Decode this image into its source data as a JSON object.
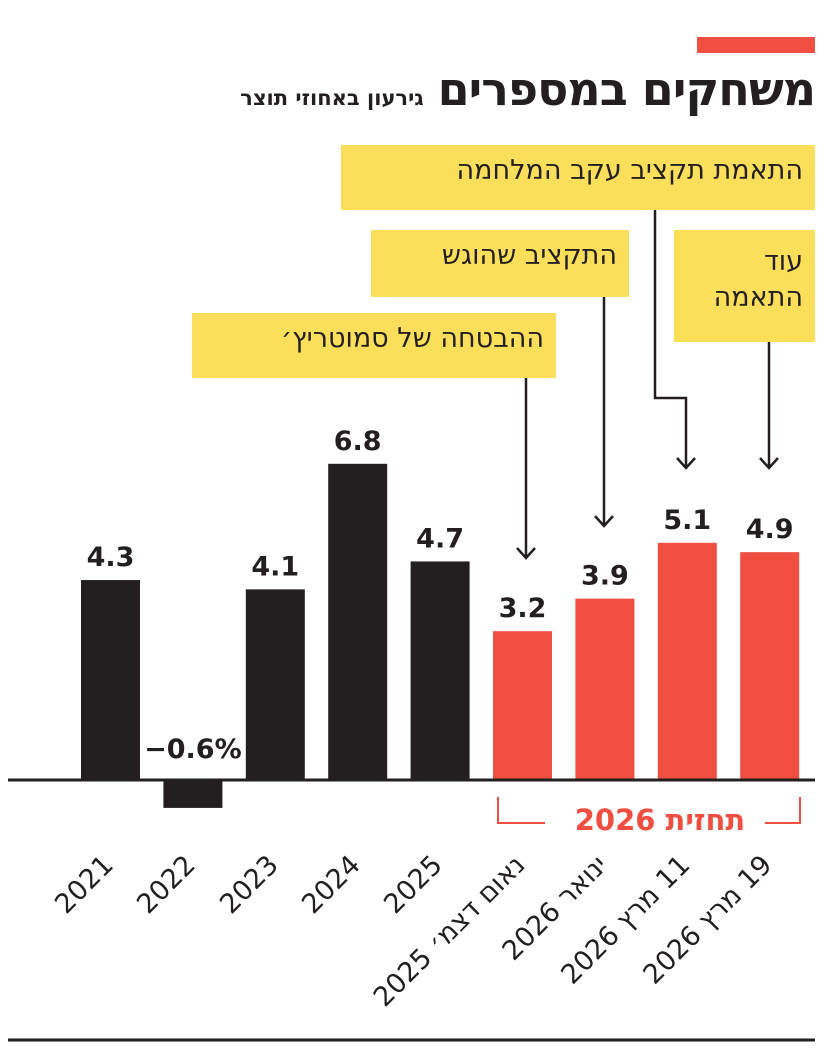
{
  "header": {
    "title": "משחקים במספרים",
    "subtitle": "גירעון באחוזי תוצר"
  },
  "annotations": [
    "התאמת תקציב עקב המלחמה",
    "התקציב שהוגש",
    "עוד התאמה",
    "ההבטחה של סמוטריץ׳"
  ],
  "forecast_label": "תחזית 2026",
  "colors": {
    "actual": "#231f20",
    "forecast": "#f04e40",
    "annotation_bg": "#fbdf5a"
  },
  "chart_data": {
    "type": "bar",
    "title": "משחקים במספרים",
    "subtitle": "גירעון באחוזי תוצר",
    "categories": [
      "2021",
      "2022",
      "2023",
      "2024",
      "2025",
      "נאום דצמ׳ 2025",
      "ינואר 2026",
      "11 מרץ 2026",
      "19 מרץ 2026"
    ],
    "values": [
      4.3,
      -0.6,
      4.1,
      6.8,
      4.7,
      3.2,
      3.9,
      5.1,
      4.9
    ],
    "data_labels": [
      "4.3",
      "−0.6%",
      "4.1",
      "6.8",
      "4.7",
      "3.2",
      "3.9",
      "5.1",
      "4.9"
    ],
    "series_type": [
      "actual",
      "actual",
      "actual",
      "actual",
      "actual",
      "forecast",
      "forecast",
      "forecast",
      "forecast"
    ],
    "grid": false
  }
}
